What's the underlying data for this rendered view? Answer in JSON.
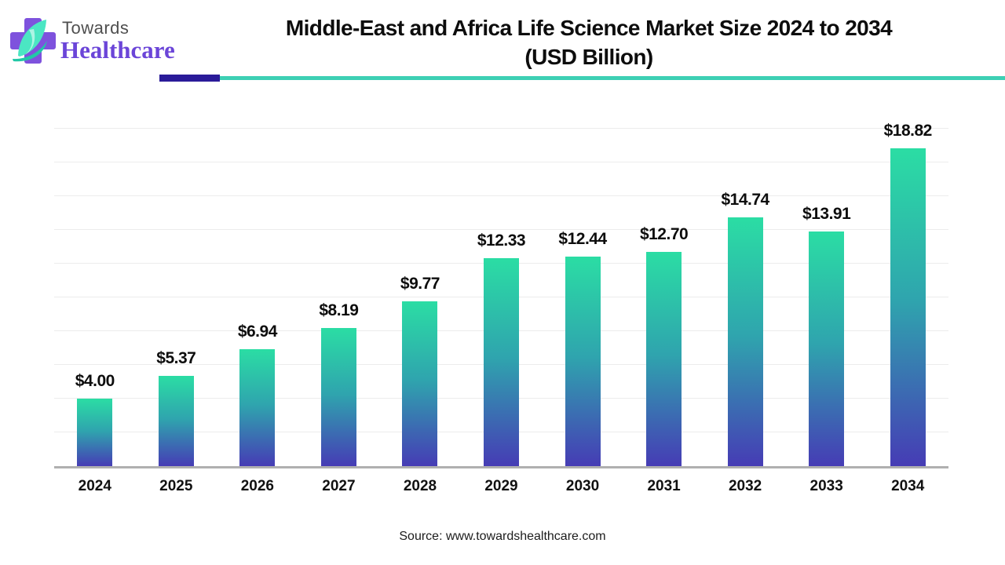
{
  "logo": {
    "brand_top": "Towards",
    "brand_bottom": "Healthcare"
  },
  "header": {
    "title_line1": "Middle-East and Africa Life Science Market Size 2024 to 2034",
    "title_line2": "(USD Billion)"
  },
  "chart_data": {
    "type": "bar",
    "title": "Middle-East and Africa Life Science Market Size 2024 to 2034 (USD Billion)",
    "categories": [
      "2024",
      "2025",
      "2026",
      "2027",
      "2028",
      "2029",
      "2030",
      "2031",
      "2032",
      "2033",
      "2034"
    ],
    "values": [
      4.0,
      5.37,
      6.94,
      8.19,
      9.77,
      12.33,
      12.44,
      12.7,
      14.74,
      13.91,
      18.82
    ],
    "value_labels": [
      "$4.00",
      "$5.37",
      "$6.94",
      "$8.19",
      "$9.77",
      "$12.33",
      "$12.44",
      "$12.70",
      "$14.74",
      "$13.91",
      "$18.82"
    ],
    "xlabel": "",
    "ylabel": "",
    "ylim": [
      0,
      20
    ],
    "gridlines": "horizontal every 2, no tick labels",
    "legend": "none",
    "bar_color_top": "#2bdda4",
    "bar_color_bottom": "#463cb5"
  },
  "footer": {
    "source": "Source: www.towardshealthcare.com"
  },
  "colors": {
    "accent_purple": "#2a1b99",
    "accent_teal": "#3dd0b4",
    "logo_cross": "#7e52dd",
    "logo_leaf": "#4be6c3",
    "logo_leaf_dark": "#21c8a6",
    "brand_purple": "#6b45d8",
    "axis_gray": "#b0b0b0",
    "gridline_gray": "#ececec"
  }
}
